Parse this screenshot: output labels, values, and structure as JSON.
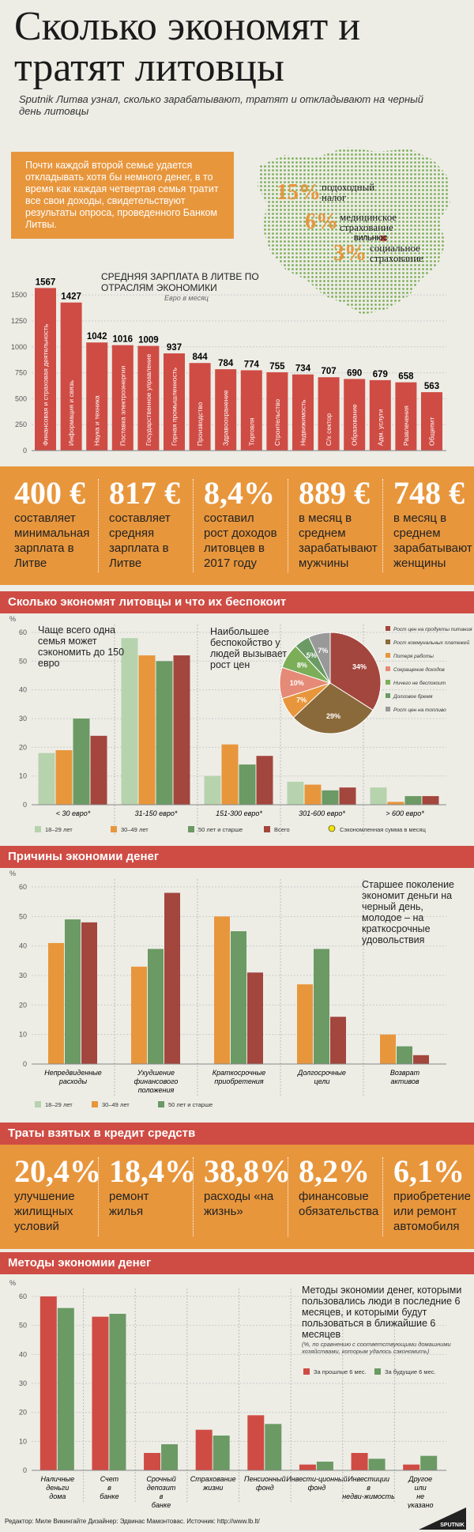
{
  "title": "Сколько экономят и тратят литовцы",
  "subtitle": "Sputnik Литва узнал, сколько зарабатывают, тратят и откладывают на черный день литовцы",
  "intro": "Почти каждой второй семье удается откладывать хотя бы немного денег, в то время как каждая четвертая семья тратит все свои доходы, свидетельствуют результаты опроса, проведенного Банком Литвы.",
  "taxes": [
    {
      "pct": "15%",
      "label1": "подоходный",
      "label2": "налог"
    },
    {
      "pct": "6%",
      "label1": "медицинское",
      "label2": "страхование"
    },
    {
      "pct": "3%",
      "label1": "социальное",
      "label2": "страхование"
    }
  ],
  "map_city": "ВИЛЬНЮС",
  "colors": {
    "red": "#cf4c44",
    "orange": "#e8963c",
    "green": "#6b9a64",
    "lightgreen": "#b6d3ad",
    "darkred": "#a3463d",
    "olive": "#8a6a3a"
  },
  "stats1": [
    {
      "big": "400 €",
      "small": "составляет минимальная зарплата в Литве"
    },
    {
      "big": "817 €",
      "small": "составляет средняя зарплата в Литве"
    },
    {
      "big": "8,4%",
      "small": "составил рост доходов литовцев в 2017 году"
    },
    {
      "big": "889 €",
      "small": "в месяц в среднем зарабатывают мужчины"
    },
    {
      "big": "748 €",
      "small": "в месяц в среднем зарабатывают женщины"
    }
  ],
  "stats2": [
    {
      "big": "20,4%",
      "small": "улучшение жилищных условий"
    },
    {
      "big": "18,4%",
      "small": "ремонт жилья"
    },
    {
      "big": "38,8%",
      "small": "расходы «на жизнь»"
    },
    {
      "big": "8,2%",
      "small": "финансовые обязательства"
    },
    {
      "big": "6,1%",
      "small": "приобретение или ремонт автомобиля"
    }
  ],
  "sections": {
    "s1": "Сколько экономят литовцы и что их беспокоит",
    "s2": "Причины экономии денег",
    "s3": "Траты взятых в кредит средств",
    "s4": "Методы экономии денег"
  },
  "footer": "Редактор: Миле Викингайте  Дизайнер: Эдвинас Мамонтовас.  Источник: http://www.lb.lt/",
  "logo": "SPUTNIK",
  "chart_data": [
    {
      "type": "bar",
      "title": "СРЕДНЯЯ ЗАРПЛАТА В ЛИТВЕ ПО ОТРАСЛЯМ ЭКОНОМИКИ",
      "subtitle": "Евро в месяц",
      "categories": [
        "Финансовая и страховая деятельность",
        "Информация и связь",
        "Наука и техника",
        "Поставка электроэнергии",
        "Государственное управление",
        "Горная промышленность",
        "Производство",
        "Здравоохранение",
        "Торговля",
        "Строительство",
        "Недвижимость",
        "С/х сектор",
        "Образование",
        "Адм. услуги",
        "Развлечения",
        "Общепит"
      ],
      "values": [
        1567,
        1427,
        1042,
        1016,
        1009,
        937,
        844,
        784,
        774,
        755,
        734,
        707,
        690,
        679,
        658,
        563
      ],
      "yticks": [
        "0",
        "250",
        "500",
        "750",
        "1000",
        "1250",
        "1500"
      ],
      "ylim": [
        0,
        1600
      ]
    },
    {
      "type": "bar",
      "ylabel": "%",
      "note": "Чаще всего одна семья может сэкономить до 150 евро",
      "categories": [
        "< 30 евро*",
        "31-150 евро*",
        "151-300 евро*",
        "301-600 евро*",
        "> 600 евро*"
      ],
      "series": [
        {
          "name": "18–29 лет",
          "values": [
            18,
            58,
            10,
            8,
            6
          ]
        },
        {
          "name": "30–49 лет",
          "values": [
            19,
            52,
            21,
            7,
            1
          ]
        },
        {
          "name": "50 лет и старше",
          "values": [
            30,
            50,
            14,
            5,
            3
          ]
        },
        {
          "name": "Всего",
          "values": [
            24,
            52,
            17,
            6,
            3
          ]
        }
      ],
      "legend_note": "Сэкономленная сумма в месяц",
      "yticks": [
        "0",
        "10",
        "20",
        "30",
        "40",
        "50",
        "60"
      ],
      "ylim": [
        0,
        60
      ]
    },
    {
      "type": "pie",
      "note": "Наибольшее беспокойство у людей вызывает рост цен",
      "labels": [
        "Рост цен на продукты питания",
        "Рост коммунальных платежей",
        "Потеря работы",
        "Сокращение доходов",
        "Ничего не беспокоит",
        "Долговое бремя",
        "Рост цен на топливо"
      ],
      "values": [
        34,
        29,
        7,
        10,
        8,
        5,
        7
      ],
      "value_labels": [
        "34%",
        "29%",
        "7%",
        "10%",
        "8%",
        "5%",
        "7%"
      ]
    },
    {
      "type": "bar",
      "ylabel": "%",
      "note": "Старшее поколение экономит деньги на черный день, молодое – на краткосрочные удовольствия",
      "categories": [
        "Непредвиденные расходы",
        "Ухудшение финансового положения",
        "Краткосрочные приобретения",
        "Долгосрочные цели",
        "Возврат активов"
      ],
      "series": [
        {
          "name": "18–29 лет",
          "values": [
            41,
            33,
            50,
            27,
            10
          ]
        },
        {
          "name": "30–49 лет",
          "values": [
            49,
            39,
            45,
            39,
            6
          ]
        },
        {
          "name": "50 лет и старше",
          "values": [
            48,
            58,
            31,
            16,
            3
          ]
        }
      ],
      "yticks": [
        "0",
        "10",
        "20",
        "30",
        "40",
        "50",
        "60"
      ],
      "ylim": [
        0,
        60
      ]
    },
    {
      "type": "bar",
      "ylabel": "%",
      "note": "Методы экономии денег, которыми пользовались люди в последние 6 месяцев, и которыми будут пользоваться в ближайшие 6 месяцев",
      "note_small": "(%, по сравнению с соответствующими домашними хозяйствами, которым удалось сэкономить)",
      "categories": [
        "Наличные деньги дома",
        "Счет в банке",
        "Срочный депозит в банке",
        "Страхование жизни",
        "Пенсионный фонд",
        "Инвести-ционный фонд",
        "Инвестиции в недви-жимость",
        "Другое или не указано"
      ],
      "series": [
        {
          "name": "За прошлые 6 мес.",
          "values": [
            60,
            53,
            6,
            14,
            19,
            2,
            6,
            2
          ]
        },
        {
          "name": "За будущие 6 мес.",
          "values": [
            56,
            54,
            9,
            12,
            16,
            3,
            4,
            5
          ]
        }
      ],
      "yticks": [
        "0",
        "10",
        "20",
        "30",
        "40",
        "50",
        "60"
      ],
      "ylim": [
        0,
        60
      ]
    }
  ]
}
